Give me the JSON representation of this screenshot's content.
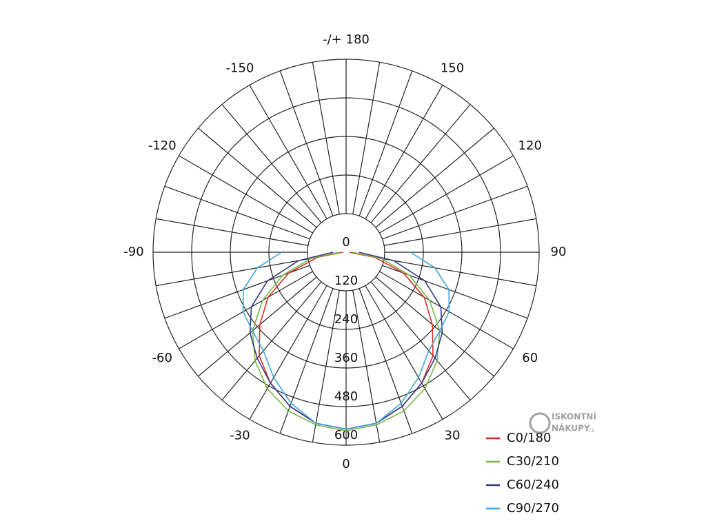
{
  "chart_data": {
    "type": "polar",
    "angles": [
      -90,
      -80,
      -70,
      -60,
      -50,
      -40,
      -30,
      -20,
      -10,
      0,
      10,
      20,
      30,
      40,
      50,
      60,
      70,
      80,
      90
    ],
    "rlim": [
      0,
      600
    ],
    "rticks": [
      0,
      120,
      240,
      360,
      480,
      600
    ],
    "thetaticks": [
      {
        "value": 180,
        "label": "-/+ 180"
      },
      150,
      120,
      90,
      60,
      30,
      0,
      -30,
      -60,
      -90,
      -120,
      -150
    ],
    "spoke_step": 10,
    "grid": true,
    "legend": "lower right",
    "series": [
      {
        "name": "C0/180",
        "color": "#d9302c",
        "values": [
          10,
          90,
          190,
          280,
          350,
          420,
          470,
          510,
          540,
          550,
          540,
          510,
          470,
          420,
          350,
          280,
          190,
          90,
          10
        ]
      },
      {
        "name": "C30/210",
        "color": "#7ab842",
        "values": [
          20,
          110,
          210,
          300,
          380,
          440,
          490,
          525,
          545,
          555,
          545,
          525,
          490,
          440,
          380,
          300,
          210,
          110,
          20
        ]
      },
      {
        "name": "C60/240",
        "color": "#2e3a82",
        "values": [
          40,
          150,
          260,
          340,
          390,
          430,
          470,
          510,
          540,
          550,
          540,
          510,
          470,
          430,
          390,
          340,
          260,
          150,
          40
        ]
      },
      {
        "name": "C90/270",
        "color": "#3ea6dc",
        "values": [
          200,
          280,
          340,
          370,
          380,
          400,
          450,
          500,
          540,
          550,
          540,
          500,
          450,
          400,
          380,
          370,
          340,
          280,
          200
        ]
      }
    ]
  },
  "watermark": {
    "line1": "ISKONTNÍ",
    "line2": "NÁKUPY",
    "suffix": ".cz"
  }
}
